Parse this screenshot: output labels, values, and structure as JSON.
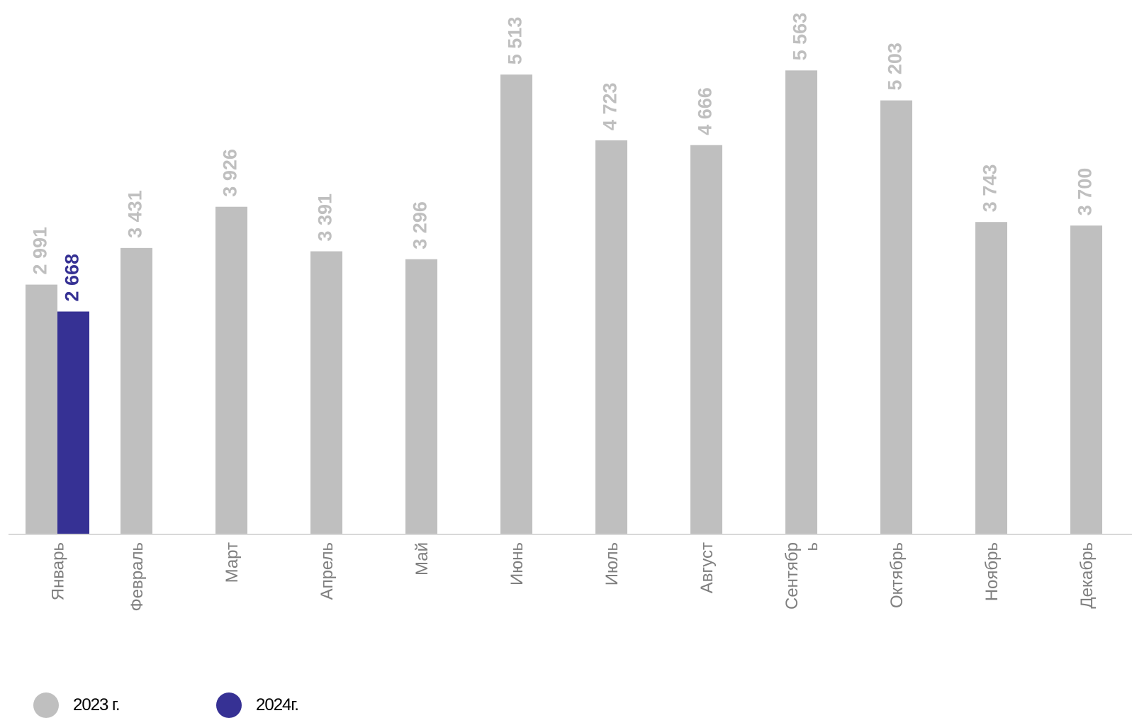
{
  "chart_data": {
    "type": "bar",
    "title": "",
    "xlabel": "",
    "ylabel": "",
    "ylim": [
      0,
      5700
    ],
    "grid": false,
    "legend_position": "bottom-left",
    "categories": [
      "Январь",
      "Февраль",
      "Март",
      "Апрель",
      "Май",
      "Июнь",
      "Июль",
      "Август",
      "Сентябрь",
      "Октябрь",
      "Ноябрь",
      "Декабрь"
    ],
    "category_display_lines": [
      [
        "Январь"
      ],
      [
        "Февраль"
      ],
      [
        "Март"
      ],
      [
        "Апрель"
      ],
      [
        "Май"
      ],
      [
        "Июнь"
      ],
      [
        "Июль"
      ],
      [
        "Август"
      ],
      [
        "Сентябр",
        "ь"
      ],
      [
        "Октябрь"
      ],
      [
        "Ноябрь"
      ],
      [
        "Декабрь"
      ]
    ],
    "series": [
      {
        "name": "2023 г.",
        "color": "#bfbfbf",
        "label_color": "#bfbfbf",
        "values": [
          2991,
          3431,
          3926,
          3391,
          3296,
          5513,
          4723,
          4666,
          5563,
          5203,
          3743,
          3700
        ],
        "labels": [
          "2 991",
          "3 431",
          "3 926",
          "3 391",
          "3 296",
          "5 513",
          "4 723",
          "4 666",
          "5 563",
          "5 203",
          "3 743",
          "3 700"
        ]
      },
      {
        "name": "2024г.",
        "color": "#363194",
        "label_color": "#363194",
        "values": [
          2668,
          null,
          null,
          null,
          null,
          null,
          null,
          null,
          null,
          null,
          null,
          null
        ],
        "labels": [
          "2 668",
          null,
          null,
          null,
          null,
          null,
          null,
          null,
          null,
          null,
          null,
          null
        ]
      }
    ]
  },
  "legend": {
    "items": [
      {
        "label": "2023 г.",
        "color": "#bfbfbf"
      },
      {
        "label": "2024г.",
        "color": "#363194"
      }
    ]
  }
}
